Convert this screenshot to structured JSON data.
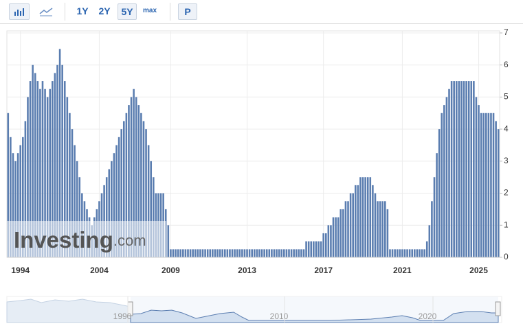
{
  "toolbar": {
    "ranges": [
      "1Y",
      "2Y",
      "5Y",
      "max"
    ],
    "active_range": 2,
    "extra": "P"
  },
  "chart_data": {
    "type": "bar",
    "color": "#5a7db0",
    "grid": true,
    "watermark": {
      "brand": "Investing",
      "suffix": ".com"
    },
    "ylim": [
      0,
      7
    ],
    "yticks": [
      0,
      1,
      2,
      3,
      4,
      5,
      6,
      7
    ],
    "categories": [
      null,
      null,
      null,
      null,
      null,
      "1994",
      null,
      null,
      null,
      null,
      null,
      null,
      null,
      null,
      null,
      null,
      null,
      null,
      null,
      null,
      null,
      null,
      null,
      null,
      null,
      null,
      null,
      null,
      null,
      null,
      null,
      null,
      null,
      null,
      null,
      null,
      null,
      "2004",
      null,
      null,
      null,
      null,
      null,
      null,
      null,
      null,
      null,
      null,
      null,
      null,
      null,
      null,
      null,
      null,
      null,
      null,
      null,
      null,
      null,
      null,
      null,
      null,
      null,
      null,
      null,
      null,
      "2009",
      null,
      null,
      null,
      null,
      null,
      null,
      null,
      null,
      null,
      null,
      null,
      null,
      null,
      null,
      null,
      null,
      null,
      null,
      null,
      null,
      null,
      null,
      null,
      null,
      null,
      null,
      null,
      null,
      null,
      null,
      "2013",
      null,
      null,
      null,
      null,
      null,
      null,
      null,
      null,
      null,
      null,
      null,
      null,
      null,
      null,
      null,
      null,
      null,
      null,
      null,
      null,
      null,
      null,
      null,
      null,
      null,
      null,
      null,
      null,
      null,
      null,
      "2017",
      null,
      null,
      null,
      null,
      null,
      null,
      null,
      null,
      null,
      null,
      null,
      null,
      null,
      null,
      null,
      null,
      null,
      null,
      null,
      null,
      null,
      null,
      null,
      null,
      null,
      null,
      null,
      null,
      null,
      null,
      null,
      "2021",
      null,
      null,
      null,
      null,
      null,
      null,
      null,
      null,
      null,
      null,
      null,
      null,
      null,
      null,
      null,
      null,
      null,
      null,
      null,
      null,
      null,
      null,
      null,
      null,
      null,
      null,
      null,
      null,
      null,
      null,
      "2025",
      null,
      null,
      null,
      null,
      null,
      null,
      null,
      null
    ],
    "values": [
      4.5,
      3.75,
      3.25,
      3.0,
      3.25,
      3.5,
      3.75,
      4.25,
      5.0,
      5.5,
      6.0,
      5.75,
      5.5,
      5.25,
      5.5,
      5.25,
      5.0,
      5.25,
      5.5,
      5.75,
      6.0,
      6.5,
      6.0,
      5.5,
      5.0,
      4.5,
      4.0,
      3.5,
      3.0,
      2.5,
      2.0,
      1.75,
      1.5,
      1.25,
      1.0,
      1.25,
      1.5,
      1.75,
      2.0,
      2.25,
      2.5,
      2.75,
      3.0,
      3.25,
      3.5,
      3.75,
      4.0,
      4.25,
      4.5,
      4.75,
      5.0,
      5.25,
      5.0,
      4.75,
      4.5,
      4.25,
      4.0,
      3.5,
      3.0,
      2.5,
      2.0,
      2.0,
      2.0,
      2.0,
      1.5,
      1.0,
      0.25,
      0.25,
      0.25,
      0.25,
      0.25,
      0.25,
      0.25,
      0.25,
      0.25,
      0.25,
      0.25,
      0.25,
      0.25,
      0.25,
      0.25,
      0.25,
      0.25,
      0.25,
      0.25,
      0.25,
      0.25,
      0.25,
      0.25,
      0.25,
      0.25,
      0.25,
      0.25,
      0.25,
      0.25,
      0.25,
      0.25,
      0.25,
      0.25,
      0.25,
      0.25,
      0.25,
      0.25,
      0.25,
      0.25,
      0.25,
      0.25,
      0.25,
      0.25,
      0.25,
      0.25,
      0.25,
      0.25,
      0.25,
      0.25,
      0.25,
      0.25,
      0.25,
      0.25,
      0.25,
      0.25,
      0.5,
      0.5,
      0.5,
      0.5,
      0.5,
      0.5,
      0.5,
      0.75,
      0.75,
      1.0,
      1.0,
      1.25,
      1.25,
      1.25,
      1.5,
      1.5,
      1.75,
      1.75,
      2.0,
      2.0,
      2.25,
      2.25,
      2.5,
      2.5,
      2.5,
      2.5,
      2.5,
      2.25,
      2.0,
      1.75,
      1.75,
      1.75,
      1.75,
      1.5,
      0.25,
      0.25,
      0.25,
      0.25,
      0.25,
      0.25,
      0.25,
      0.25,
      0.25,
      0.25,
      0.25,
      0.25,
      0.25,
      0.25,
      0.25,
      0.5,
      1.0,
      1.75,
      2.5,
      3.25,
      4.0,
      4.5,
      4.75,
      5.0,
      5.25,
      5.5,
      5.5,
      5.5,
      5.5,
      5.5,
      5.5,
      5.5,
      5.5,
      5.5,
      5.5,
      5.0,
      4.75,
      4.5,
      4.5,
      4.5,
      4.5,
      4.5,
      4.5,
      4.25,
      4.0
    ]
  },
  "navigator": {
    "labels": [
      "1990",
      "2010",
      "2020"
    ]
  }
}
